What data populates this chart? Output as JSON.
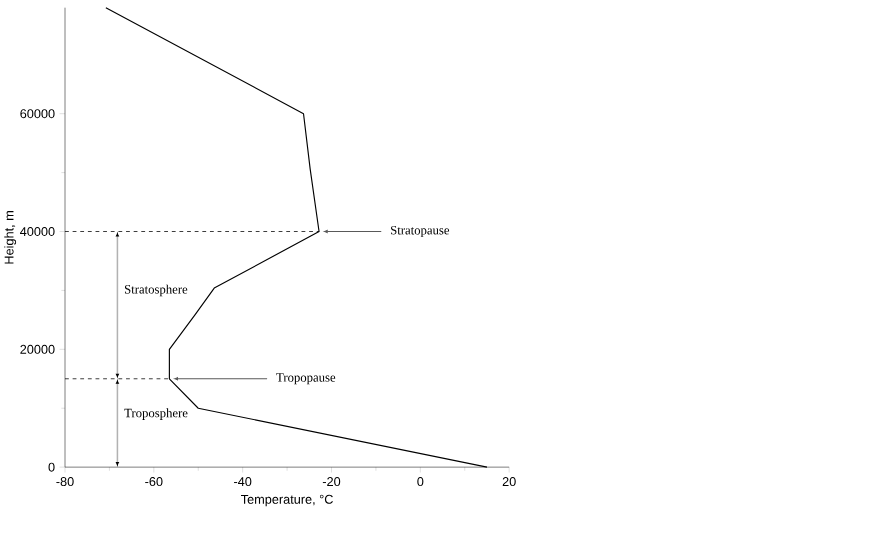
{
  "chart_data": {
    "type": "line",
    "xlabel": "Temperature, °C",
    "ylabel": "Height, m",
    "x": [
      15,
      -50,
      -56.5,
      -56.5,
      -50.7,
      -46.4,
      -22.8,
      -24.8,
      -26.3,
      -70.8
    ],
    "series": [
      {
        "color": "#000000",
        "values": [
          0,
          10000,
          15000,
          20000,
          25900,
          30400,
          40000,
          50600,
          60000,
          78000
        ]
      }
    ],
    "xlim": [
      -80,
      20
    ],
    "ylim": [
      0,
      78000
    ],
    "xticks": [
      -80,
      -60,
      -40,
      -20,
      0,
      20
    ],
    "yticks": [
      0,
      20000,
      40000,
      60000
    ],
    "ref_lines": [
      {
        "axis": "y",
        "value": 40000,
        "line_style": "dashed"
      },
      {
        "axis": "y",
        "value": 15000,
        "line_style": "dashed"
      }
    ],
    "annotations": [
      {
        "text": "Stratopause",
        "x": -22.8,
        "y": 40000
      },
      {
        "text": "Tropopause",
        "x": -56.5,
        "y": 15000
      },
      "Stratosphere",
      "Troposphere"
    ],
    "grid": false,
    "marker": "none",
    "line_style": "solid"
  }
}
